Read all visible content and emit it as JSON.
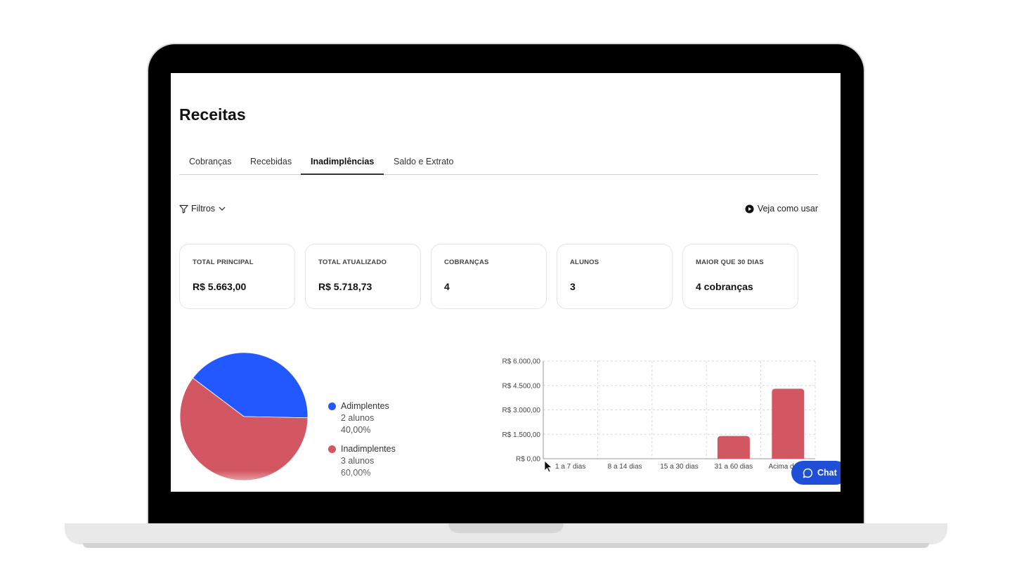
{
  "page": {
    "title": "Receitas"
  },
  "tabs": [
    {
      "label": "Cobranças",
      "active": false
    },
    {
      "label": "Recebidas",
      "active": false
    },
    {
      "label": "Inadimplências",
      "active": true
    },
    {
      "label": "Saldo e Extrato",
      "active": false
    }
  ],
  "toolbar": {
    "filters_label": "Filtros",
    "filter_icon": "funnel-icon",
    "how_label": "Veja como usar",
    "how_icon": "play-circle-icon"
  },
  "cards": [
    {
      "label": "TOTAL PRINCIPAL",
      "value": "R$ 5.663,00"
    },
    {
      "label": "TOTAL ATUALIZADO",
      "value": "R$ 5.718,73"
    },
    {
      "label": "COBRANÇAS",
      "value": "4"
    },
    {
      "label": "ALUNOS",
      "value": "3"
    },
    {
      "label": "MAIOR QUE 30 DIAS",
      "value": "4 cobranças"
    }
  ],
  "legend": [
    {
      "label": "Adimplentes",
      "count": "2 alunos",
      "percent": "40,00%",
      "color": "#2158ff"
    },
    {
      "label": "Inadimplentes",
      "count": "3 alunos",
      "percent": "60,00%",
      "color": "#d35762"
    }
  ],
  "chart_data": [
    {
      "type": "pie",
      "categories": [
        "Adimplentes",
        "Inadimplentes"
      ],
      "values": [
        40,
        60
      ],
      "colors": [
        "#2158ff",
        "#d35762"
      ]
    },
    {
      "type": "bar",
      "categories": [
        "1 a 7 dias",
        "8 a 14 dias",
        "15 a 30 dias",
        "31 a 60 dias",
        "Acima de 60"
      ],
      "values": [
        0,
        0,
        0,
        1400,
        4300
      ],
      "yticks": [
        "R$ 0,00",
        "R$ 1.500,00",
        "R$ 3.000,00",
        "R$ 4.500,00",
        "R$ 6.000,00"
      ],
      "ylim": [
        0,
        6000
      ],
      "color": "#d35762",
      "grid": true
    }
  ],
  "chat": {
    "label": "Chat",
    "icon": "chat-bubble-icon"
  }
}
